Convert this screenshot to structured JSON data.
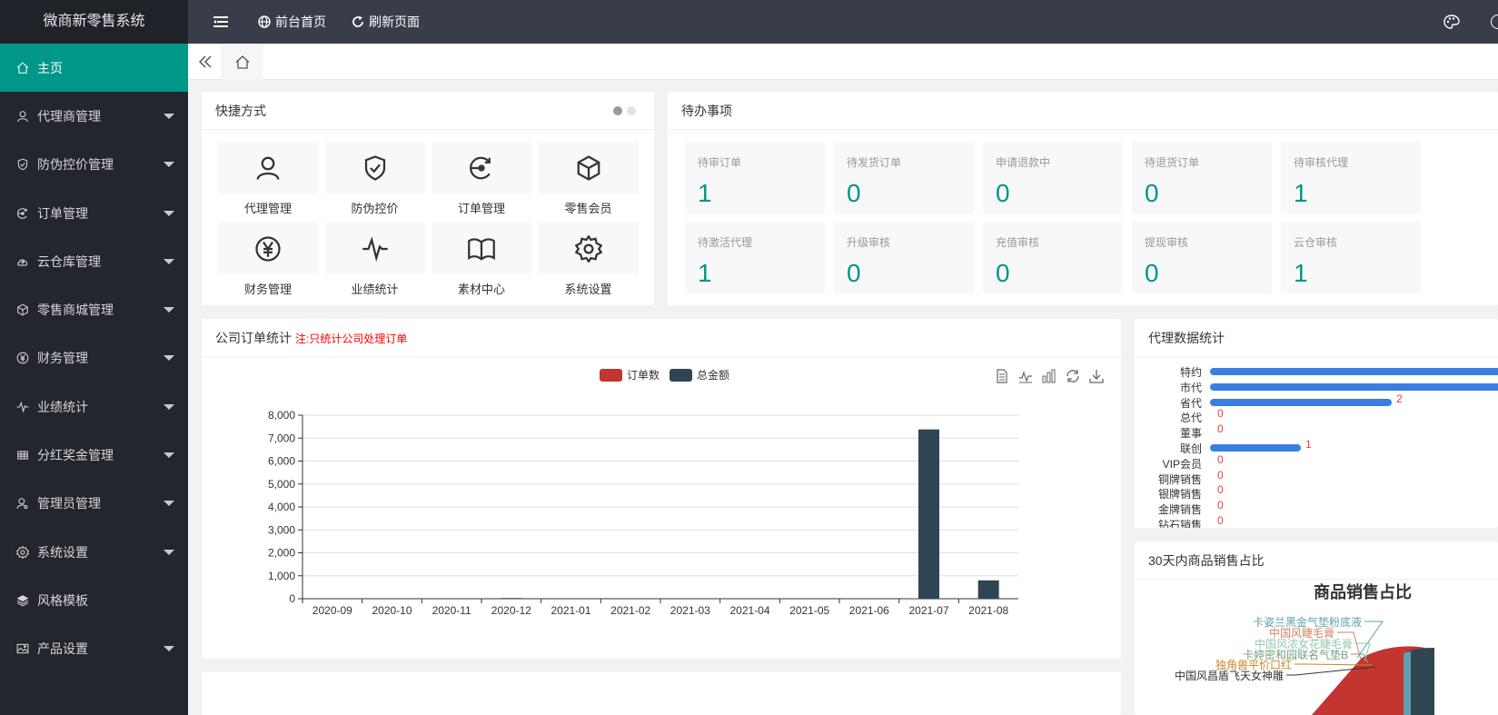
{
  "app": {
    "title": "微商新零售系统"
  },
  "header": {
    "menu_icon": "menu-icon",
    "home_label": "前台首页",
    "refresh_label": "刷新页面"
  },
  "sidebar": {
    "items": [
      {
        "label": "主页",
        "icon": "home-icon",
        "active": true,
        "has_arrow": false
      },
      {
        "label": "代理商管理",
        "icon": "user-icon",
        "has_arrow": true
      },
      {
        "label": "防伪控价管理",
        "icon": "shield-icon",
        "has_arrow": true
      },
      {
        "label": "订单管理",
        "icon": "order-icon",
        "has_arrow": true
      },
      {
        "label": "云仓库管理",
        "icon": "cloud-icon",
        "has_arrow": true
      },
      {
        "label": "零售商城管理",
        "icon": "box-icon",
        "has_arrow": true
      },
      {
        "label": "财务管理",
        "icon": "yen-icon",
        "has_arrow": true
      },
      {
        "label": "业绩统计",
        "icon": "pulse-icon",
        "has_arrow": true
      },
      {
        "label": "分红奖金管理",
        "icon": "grid-icon",
        "has_arrow": true
      },
      {
        "label": "管理员管理",
        "icon": "admin-icon",
        "has_arrow": true
      },
      {
        "label": "系统设置",
        "icon": "gear-icon",
        "has_arrow": true
      },
      {
        "label": "风格模板",
        "icon": "layers-icon",
        "has_arrow": false
      },
      {
        "label": "产品设置",
        "icon": "image-icon",
        "has_arrow": true
      }
    ]
  },
  "shortcuts": {
    "title": "快捷方式",
    "items": [
      {
        "label": "代理管理",
        "icon": "user-icon"
      },
      {
        "label": "防伪控价",
        "icon": "shield-check-icon"
      },
      {
        "label": "订单管理",
        "icon": "order-icon"
      },
      {
        "label": "零售会员",
        "icon": "box-icon"
      },
      {
        "label": "财务管理",
        "icon": "yen-icon"
      },
      {
        "label": "业绩统计",
        "icon": "pulse-icon"
      },
      {
        "label": "素材中心",
        "icon": "book-icon"
      },
      {
        "label": "系统设置",
        "icon": "gear-icon"
      }
    ]
  },
  "todo": {
    "title": "待办事项",
    "items": [
      {
        "label": "待审订单",
        "value": "1"
      },
      {
        "label": "待发货订单",
        "value": "0"
      },
      {
        "label": "申请退款中",
        "value": "0"
      },
      {
        "label": "待退货订单",
        "value": "0"
      },
      {
        "label": "待审核代理",
        "value": "1"
      },
      {
        "label": "待激活代理",
        "value": "1"
      },
      {
        "label": "升级审核",
        "value": "0"
      },
      {
        "label": "充值审核",
        "value": "0"
      },
      {
        "label": "提现审核",
        "value": "0"
      },
      {
        "label": "云仓审核",
        "value": "1"
      }
    ]
  },
  "order_chart": {
    "title": "公司订单统计",
    "note": "注:只统计公司处理订单",
    "colors": {
      "orders": "#c23531",
      "amount": "#2f4554"
    }
  },
  "chart_data": [
    {
      "type": "bar",
      "categories": [
        "2020-09",
        "2020-10",
        "2020-11",
        "2020-12",
        "2021-01",
        "2021-02",
        "2021-03",
        "2021-04",
        "2021-05",
        "2021-06",
        "2021-07",
        "2021-08"
      ],
      "series": [
        {
          "name": "订单数",
          "values": [
            0,
            0,
            0,
            0,
            0,
            0,
            0,
            0,
            0,
            0,
            10,
            2
          ]
        },
        {
          "name": "总金额",
          "values": [
            0,
            0,
            0,
            30,
            0,
            0,
            0,
            0,
            0,
            0,
            7380,
            800
          ]
        }
      ],
      "yticks": [
        "0",
        "1,000",
        "2,000",
        "3,000",
        "4,000",
        "5,000",
        "6,000",
        "7,000",
        "8,000"
      ],
      "ylim": [
        0,
        8000
      ],
      "legend": "top-center"
    },
    {
      "type": "bar",
      "orientation": "horizontal",
      "categories": [
        "特约",
        "市代",
        "省代",
        "总代",
        "董事",
        "联创",
        "VIP会员",
        "铜牌销售",
        "银牌销售",
        "金牌销售",
        "钻石销售"
      ],
      "values": [
        null,
        null,
        2,
        0,
        0,
        1,
        0,
        0,
        0,
        0,
        0
      ],
      "value_labels": [
        "",
        "",
        "2",
        "0",
        "0",
        "1",
        "0",
        "0",
        "0",
        "0",
        "0"
      ]
    }
  ],
  "agent_stats": {
    "title": "代理数据统计"
  },
  "sales_share": {
    "title": "30天内商品销售占比",
    "chart_title": "商品销售占比",
    "labels": [
      {
        "text": "卡姿兰黑金气垫粉底液",
        "color": "#61a0a8"
      },
      {
        "text": "中国风睫毛膏",
        "color": "#d48265"
      },
      {
        "text": "中国风浓女花睫毛膏",
        "color": "#91c7ae"
      },
      {
        "text": "卡婷密和园联名气垫B",
        "color": "#749f83"
      },
      {
        "text": "独角兽平价口红",
        "color": "#ca8622"
      },
      {
        "text": "中国风昌盾飞天女神雕",
        "color": "#333333"
      }
    ]
  }
}
